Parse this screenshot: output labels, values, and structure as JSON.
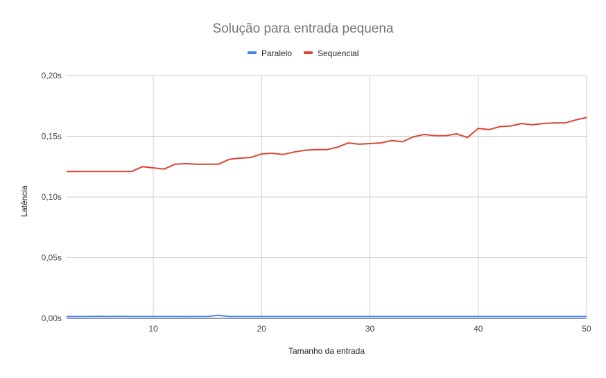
{
  "chart_data": {
    "type": "line",
    "title": "Solução para entrada pequena",
    "xlabel": "Tamanho da entrada",
    "ylabel": "Latência",
    "xlim": [
      2,
      50
    ],
    "ylim": [
      0,
      0.2
    ],
    "x_ticks": [
      10,
      20,
      30,
      40,
      50
    ],
    "x_tick_labels": [
      "10",
      "20",
      "30",
      "40",
      "50"
    ],
    "y_ticks": [
      0,
      0.05,
      0.1,
      0.15,
      0.2
    ],
    "y_tick_labels": [
      "0,00s",
      "0,05s",
      "0,10s",
      "0,15s",
      "0,20s"
    ],
    "grid": true,
    "legend_position": "top",
    "x": [
      2,
      3,
      4,
      5,
      6,
      7,
      8,
      9,
      10,
      11,
      12,
      13,
      14,
      15,
      16,
      17,
      18,
      19,
      20,
      21,
      22,
      23,
      24,
      25,
      26,
      27,
      28,
      29,
      30,
      31,
      32,
      33,
      34,
      35,
      36,
      37,
      38,
      39,
      40,
      41,
      42,
      43,
      44,
      45,
      46,
      47,
      48,
      49,
      50
    ],
    "series": [
      {
        "name": "Paralelo",
        "color": "#4285f4",
        "values": [
          0.0015,
          0.0016,
          0.0016,
          0.0017,
          0.0016,
          0.0017,
          0.0016,
          0.0016,
          0.0016,
          0.0016,
          0.0016,
          0.0015,
          0.0016,
          0.0016,
          0.0025,
          0.0016,
          0.0016,
          0.0016,
          0.0016,
          0.0016,
          0.0016,
          0.0016,
          0.0016,
          0.0016,
          0.0016,
          0.0016,
          0.0016,
          0.0016,
          0.0016,
          0.0016,
          0.0016,
          0.0016,
          0.0016,
          0.0016,
          0.0016,
          0.0016,
          0.0016,
          0.0016,
          0.0016,
          0.0016,
          0.0016,
          0.0016,
          0.0016,
          0.0016,
          0.0016,
          0.0016,
          0.0016,
          0.0016,
          0.0016
        ]
      },
      {
        "name": "Sequencial",
        "color": "#db4437",
        "values": [
          0.121,
          0.121,
          0.121,
          0.121,
          0.121,
          0.121,
          0.121,
          0.125,
          0.124,
          0.123,
          0.127,
          0.1275,
          0.127,
          0.127,
          0.127,
          0.131,
          0.132,
          0.1325,
          0.1355,
          0.136,
          0.135,
          0.137,
          0.1385,
          0.139,
          0.139,
          0.141,
          0.1445,
          0.1435,
          0.144,
          0.1445,
          0.1465,
          0.1455,
          0.1495,
          0.1515,
          0.1505,
          0.1505,
          0.152,
          0.149,
          0.1565,
          0.1555,
          0.158,
          0.1585,
          0.1605,
          0.1595,
          0.1605,
          0.161,
          0.161,
          0.1635,
          0.1655
        ]
      }
    ]
  }
}
